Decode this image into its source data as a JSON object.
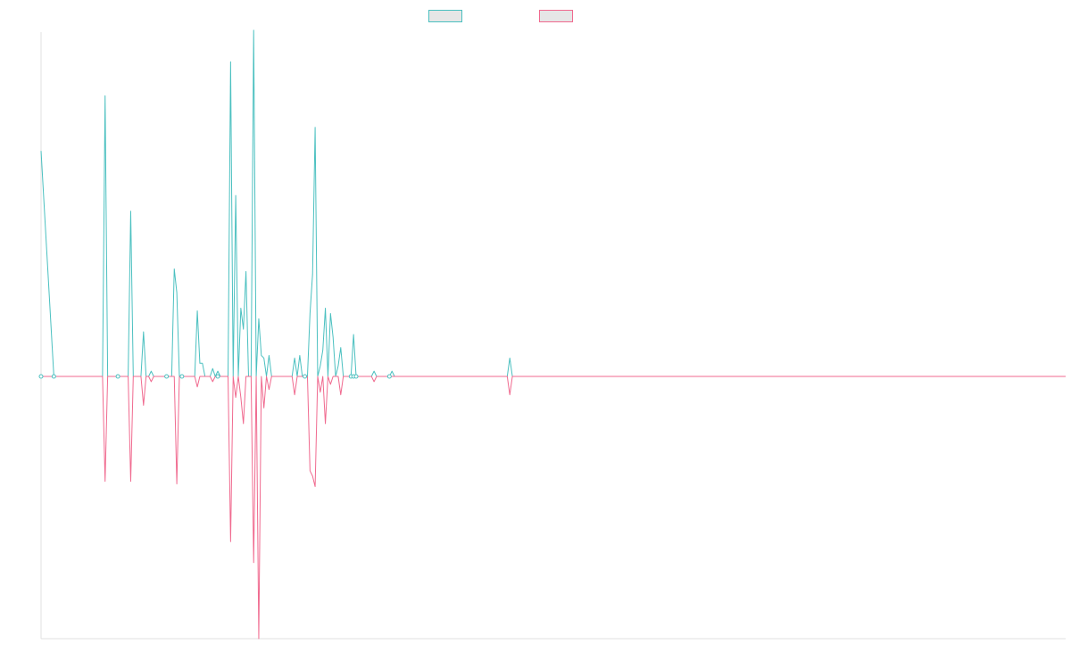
{
  "chart_data": {
    "type": "line",
    "title": "",
    "xlabel": "",
    "ylabel": "",
    "grid": false,
    "legend_position": "top-center",
    "x_count": 400,
    "ylim": [
      -1.0,
      1.0
    ],
    "series": [
      {
        "color": "#4bc0c0",
        "points": [
          [
            0,
            0.86
          ],
          [
            5,
            0.0
          ],
          [
            24,
            0.0
          ],
          [
            25,
            1.07
          ],
          [
            26,
            0.0
          ],
          [
            34,
            0.0
          ],
          [
            35,
            0.63
          ],
          [
            36,
            0.0
          ],
          [
            39,
            0.0
          ],
          [
            40,
            0.17
          ],
          [
            41,
            0.0
          ],
          [
            42,
            0.0
          ],
          [
            43,
            0.02
          ],
          [
            44,
            0.0
          ],
          [
            51,
            0.0
          ],
          [
            52,
            0.41
          ],
          [
            53,
            0.32
          ],
          [
            54,
            0.0
          ],
          [
            60,
            0.0
          ],
          [
            61,
            0.25
          ],
          [
            62,
            0.05
          ],
          [
            63,
            0.05
          ],
          [
            64,
            0.0
          ],
          [
            66,
            0.0
          ],
          [
            67,
            0.03
          ],
          [
            68,
            0.0
          ],
          [
            69,
            0.02
          ],
          [
            70,
            0.0
          ],
          [
            73,
            0.0
          ],
          [
            74,
            1.2
          ],
          [
            75,
            0.0
          ],
          [
            76,
            0.69
          ],
          [
            77,
            0.0
          ],
          [
            78,
            0.26
          ],
          [
            79,
            0.18
          ],
          [
            80,
            0.4
          ],
          [
            81,
            0.0
          ],
          [
            82,
            0.0
          ],
          [
            83,
            1.32
          ],
          [
            84,
            0.0
          ],
          [
            85,
            0.22
          ],
          [
            86,
            0.08
          ],
          [
            87,
            0.07
          ],
          [
            88,
            0.0
          ],
          [
            89,
            0.08
          ],
          [
            90,
            0.0
          ],
          [
            98,
            0.0
          ],
          [
            99,
            0.07
          ],
          [
            100,
            0.0
          ],
          [
            101,
            0.08
          ],
          [
            102,
            0.0
          ],
          [
            104,
            0.0
          ],
          [
            105,
            0.24
          ],
          [
            106,
            0.39
          ],
          [
            107,
            0.95
          ],
          [
            108,
            0.0
          ],
          [
            109,
            0.04
          ],
          [
            110,
            0.1
          ],
          [
            111,
            0.26
          ],
          [
            112,
            0.0
          ],
          [
            113,
            0.24
          ],
          [
            114,
            0.15
          ],
          [
            115,
            0.0
          ],
          [
            116,
            0.04
          ],
          [
            117,
            0.11
          ],
          [
            118,
            0.0
          ],
          [
            121,
            0.0
          ],
          [
            122,
            0.16
          ],
          [
            123,
            0.0
          ],
          [
            129,
            0.0
          ],
          [
            130,
            0.02
          ],
          [
            131,
            0.0
          ],
          [
            136,
            0.0
          ],
          [
            137,
            0.02
          ],
          [
            138,
            0.0
          ],
          [
            182,
            0.0
          ],
          [
            183,
            0.07
          ],
          [
            184,
            0.0
          ],
          [
            400,
            0.0
          ]
        ]
      },
      {
        "color": "#f06a8f",
        "points": [
          [
            0,
            0.0
          ],
          [
            24,
            0.0
          ],
          [
            25,
            -0.4
          ],
          [
            26,
            0.0
          ],
          [
            34,
            0.0
          ],
          [
            35,
            -0.4
          ],
          [
            36,
            0.0
          ],
          [
            39,
            0.0
          ],
          [
            40,
            -0.11
          ],
          [
            41,
            0.0
          ],
          [
            42,
            0.0
          ],
          [
            43,
            -0.02
          ],
          [
            44,
            0.0
          ],
          [
            52,
            0.0
          ],
          [
            53,
            -0.41
          ],
          [
            54,
            0.0
          ],
          [
            60,
            0.0
          ],
          [
            61,
            -0.04
          ],
          [
            62,
            0.0
          ],
          [
            66,
            0.0
          ],
          [
            67,
            -0.02
          ],
          [
            68,
            0.0
          ],
          [
            73,
            0.0
          ],
          [
            74,
            -0.63
          ],
          [
            75,
            0.0
          ],
          [
            76,
            -0.08
          ],
          [
            77,
            0.0
          ],
          [
            78,
            -0.08
          ],
          [
            79,
            -0.18
          ],
          [
            80,
            0.0
          ],
          [
            82,
            0.0
          ],
          [
            83,
            -0.71
          ],
          [
            84,
            0.0
          ],
          [
            85,
            -1.0
          ],
          [
            86,
            0.0
          ],
          [
            87,
            -0.12
          ],
          [
            88,
            0.0
          ],
          [
            89,
            -0.05
          ],
          [
            90,
            0.0
          ],
          [
            98,
            0.0
          ],
          [
            99,
            -0.07
          ],
          [
            100,
            0.0
          ],
          [
            104,
            0.0
          ],
          [
            105,
            -0.36
          ],
          [
            106,
            -0.38
          ],
          [
            107,
            -0.42
          ],
          [
            108,
            0.0
          ],
          [
            109,
            -0.06
          ],
          [
            110,
            0.0
          ],
          [
            111,
            -0.18
          ],
          [
            112,
            0.0
          ],
          [
            113,
            -0.03
          ],
          [
            114,
            0.0
          ],
          [
            116,
            0.0
          ],
          [
            117,
            -0.07
          ],
          [
            118,
            0.0
          ],
          [
            129,
            0.0
          ],
          [
            130,
            -0.02
          ],
          [
            131,
            0.0
          ],
          [
            182,
            0.0
          ],
          [
            183,
            -0.07
          ],
          [
            184,
            0.0
          ],
          [
            400,
            0.0
          ]
        ]
      }
    ],
    "markers": [
      0,
      5,
      30,
      49,
      55,
      69,
      103,
      121,
      122,
      123,
      136
    ]
  }
}
